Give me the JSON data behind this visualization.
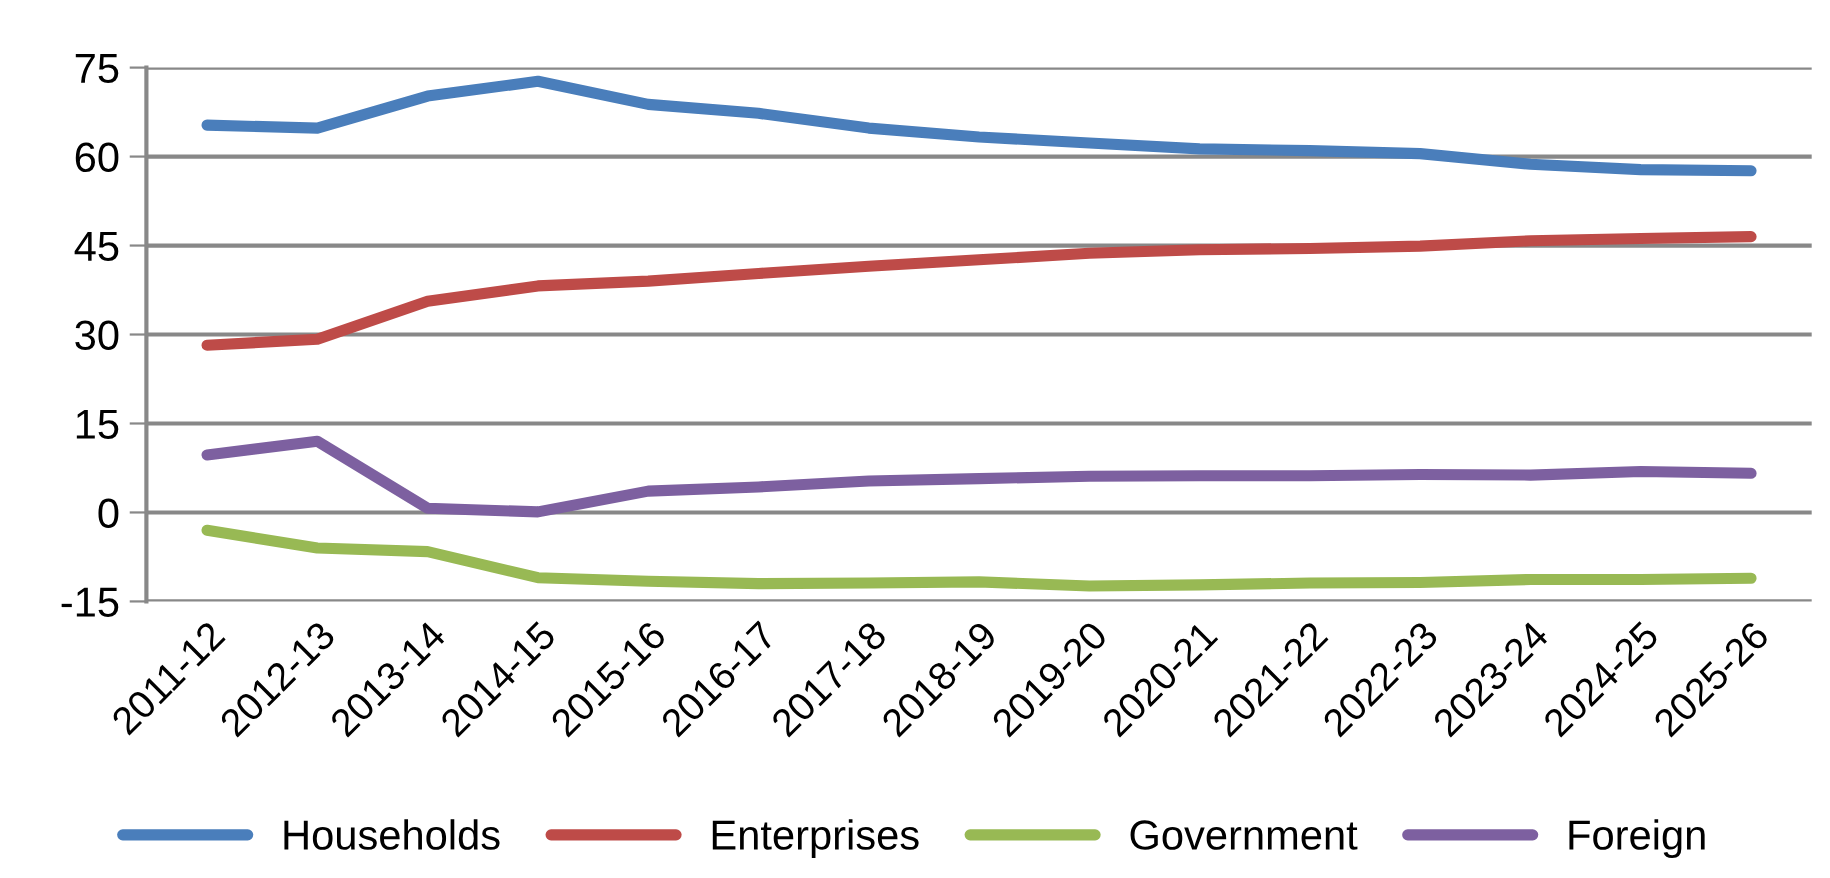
{
  "chart_data": {
    "type": "line",
    "categories": [
      "2011-12",
      "2012-13",
      "2013-14",
      "2014-15",
      "2015-16",
      "2016-17",
      "2017-18",
      "2018-19",
      "2019-20",
      "2020-21",
      "2021-22",
      "2022-23",
      "2023-24",
      "2024-25",
      "2025-26"
    ],
    "series": [
      {
        "name": "Households",
        "color": "#4a7ebb",
        "values": [
          65.3,
          64.8,
          70.2,
          72.7,
          68.8,
          67.3,
          64.8,
          63.3,
          62.3,
          61.3,
          61.0,
          60.5,
          58.7,
          57.8,
          57.6
        ]
      },
      {
        "name": "Enterprises",
        "color": "#be4b48",
        "values": [
          28.2,
          29.2,
          35.6,
          38.2,
          39.0,
          40.3,
          41.5,
          42.6,
          43.7,
          44.3,
          44.5,
          44.9,
          45.8,
          46.2,
          46.5
        ]
      },
      {
        "name": "Government",
        "color": "#98b954",
        "values": [
          -3.0,
          -6.0,
          -6.6,
          -11.0,
          -11.6,
          -12.0,
          -11.9,
          -11.7,
          -12.4,
          -12.2,
          -11.9,
          -11.8,
          -11.3,
          -11.3,
          -11.1
        ]
      },
      {
        "name": "Foreign",
        "color": "#7d60a0",
        "values": [
          9.7,
          12.0,
          0.7,
          0.1,
          3.6,
          4.3,
          5.3,
          5.7,
          6.1,
          6.2,
          6.2,
          6.4,
          6.3,
          6.9,
          6.6
        ]
      }
    ],
    "ylim": [
      -15,
      75
    ],
    "yticks": [
      -15,
      0,
      15,
      30,
      45,
      60,
      75
    ],
    "grid": "y",
    "legend": "bottom",
    "marker": "none",
    "line_style": "solid"
  }
}
